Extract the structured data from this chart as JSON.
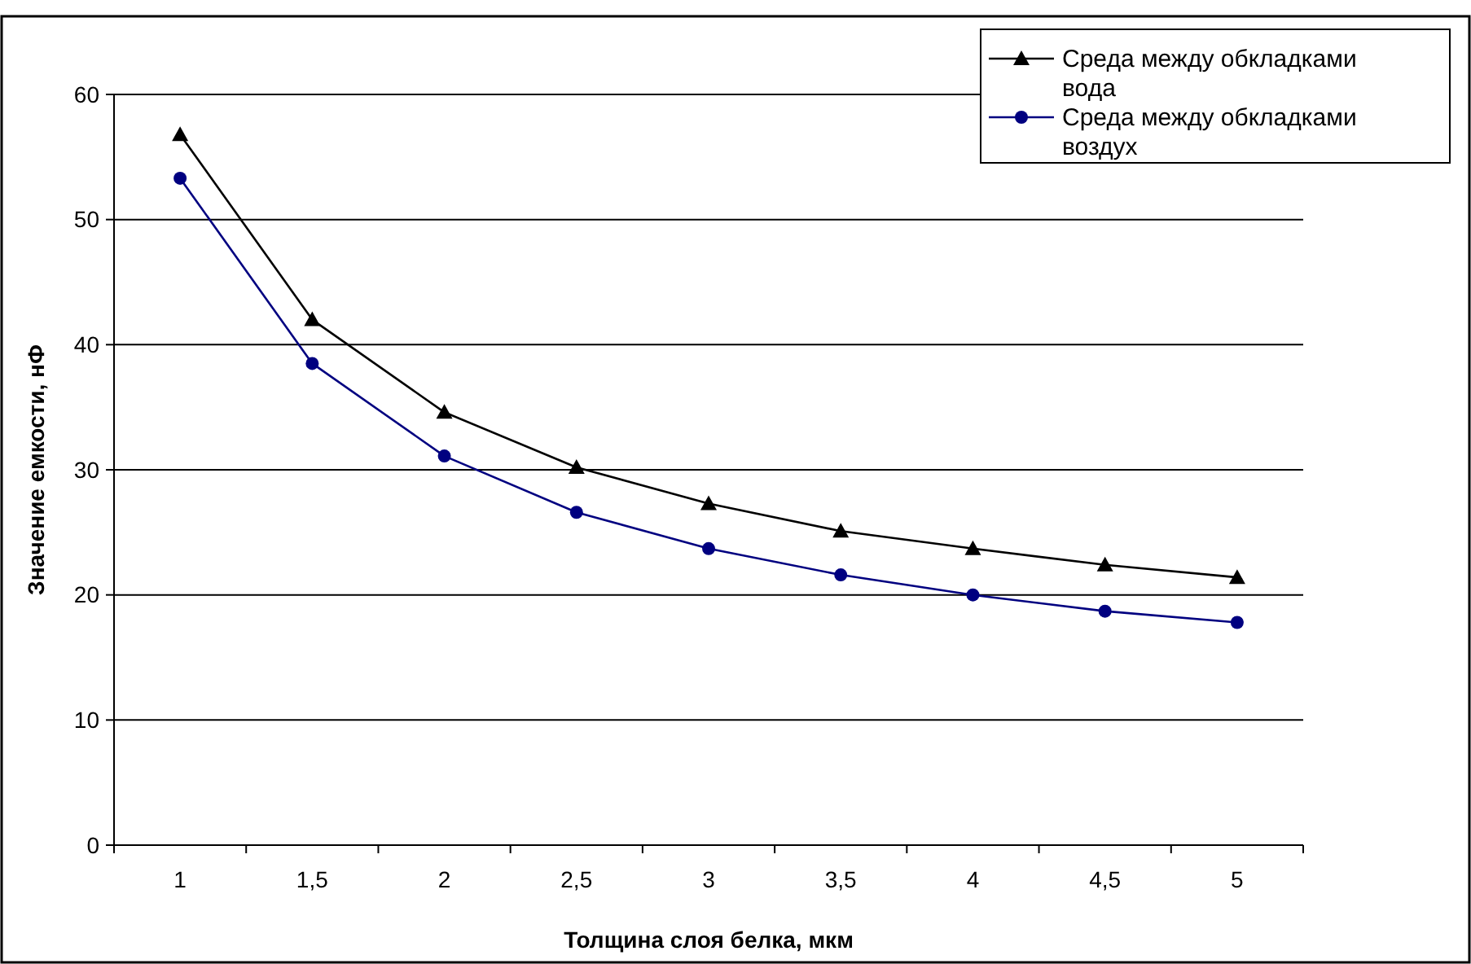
{
  "chart_data": {
    "type": "line",
    "xlabel": "Толщина слоя белка, мкм",
    "ylabel": "Значение емкости, нФ",
    "categories": [
      "1",
      "1,5",
      "2",
      "2,5",
      "3",
      "3,5",
      "4",
      "4,5",
      "5"
    ],
    "series": [
      {
        "name": "Среда между обкладками вода",
        "color": "#000000",
        "marker": "triangle",
        "values": [
          56.8,
          42.0,
          34.6,
          30.2,
          27.3,
          25.1,
          23.7,
          22.4,
          21.4
        ]
      },
      {
        "name": "Среда между обкладками воздух",
        "color": "#000080",
        "marker": "circle",
        "values": [
          53.3,
          38.5,
          31.1,
          26.6,
          23.7,
          21.6,
          20.0,
          18.7,
          17.8
        ]
      }
    ],
    "ylim": [
      0,
      60
    ],
    "yticks": [
      0,
      10,
      20,
      30,
      40,
      50,
      60
    ],
    "grid": "y",
    "legend": "top right",
    "line_style": "solid"
  }
}
